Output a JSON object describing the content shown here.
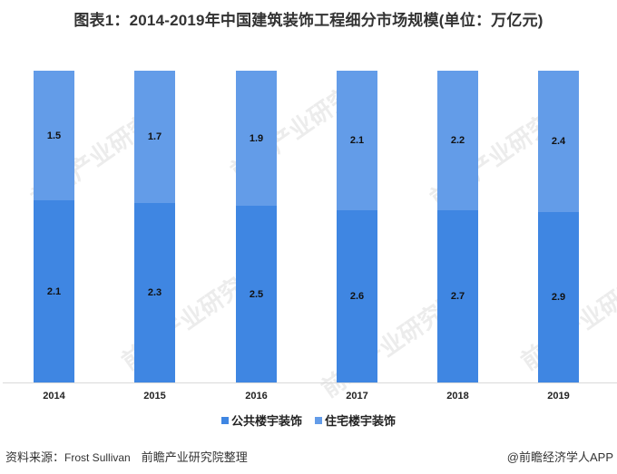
{
  "title": "图表1：2014-2019年中国建筑装饰工程细分市场规模(单位：万亿元)",
  "chart_data": {
    "type": "bar",
    "stacked": true,
    "title": "图表1：2014-2019年中国建筑装饰工程细分市场规模(单位：万亿元)",
    "xlabel": "",
    "ylabel": "",
    "categories": [
      "2014",
      "2015",
      "2016",
      "2017",
      "2018",
      "2019"
    ],
    "series": [
      {
        "name": "公共楼宇装饰",
        "color": "#3f86e2",
        "values": [
          2.1,
          2.3,
          2.5,
          2.6,
          2.7,
          2.9
        ]
      },
      {
        "name": "住宅楼宇装饰",
        "color": "#639ce8",
        "values": [
          1.5,
          1.7,
          1.9,
          2.1,
          2.2,
          2.4
        ]
      }
    ],
    "normalized_100_percent": true,
    "grid": false,
    "legend_position": "bottom",
    "data_labels": true
  },
  "legend": [
    "公共楼宇装饰",
    "住宅楼宇装饰"
  ],
  "footer": {
    "source_label": "资料来源：",
    "source_name": "Frost Sullivan",
    "compiler": "前瞻产业研究院整理",
    "credit": "@前瞻经济学人APP"
  },
  "watermark": "前瞻产业研究院"
}
